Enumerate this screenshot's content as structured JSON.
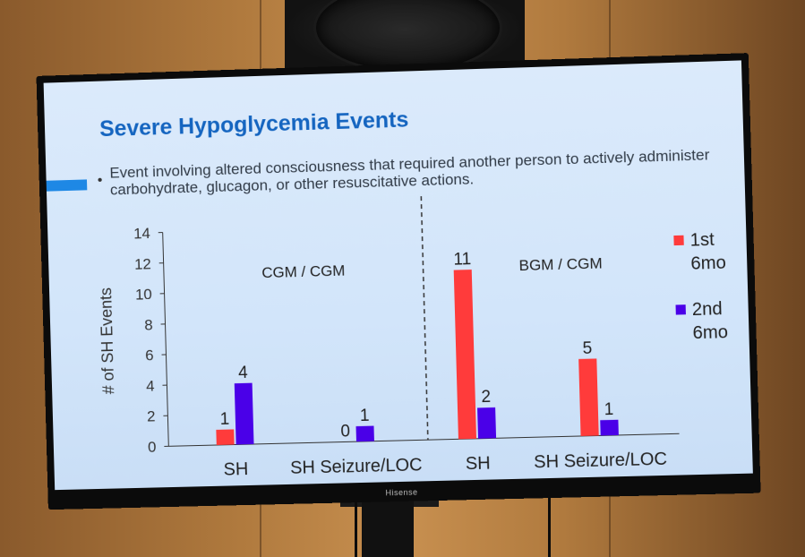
{
  "tv": {
    "brand": "Hisense"
  },
  "slide": {
    "title": "Severe Hypoglycemia Events",
    "bullet": "Event involving altered consciousness that required another person to actively administer carbohydrate, glucagon, or other resuscitative actions."
  },
  "chart_data": {
    "type": "bar",
    "title": "",
    "ylabel": "# of SH Events",
    "xlabel": "",
    "ylim": [
      0,
      14
    ],
    "yticks": [
      0,
      2,
      4,
      6,
      8,
      10,
      12,
      14
    ],
    "groups": [
      "CGM / CGM",
      "BGM / CGM"
    ],
    "categories": [
      "SH",
      "SH Seizure/LOC",
      "SH",
      "SH Seizure/LOC"
    ],
    "series": [
      {
        "name": "1st 6mo",
        "color": "#ff3b3b",
        "values": [
          1,
          0,
          11,
          5
        ]
      },
      {
        "name": "2nd 6mo",
        "color": "#4a00e8",
        "values": [
          4,
          1,
          2,
          1
        ]
      }
    ],
    "legend": [
      "1st",
      "6mo",
      "2nd",
      "6mo"
    ],
    "legend_position": "right",
    "grid": false
  },
  "colors": {
    "title": "#1565c0",
    "accent": "#1e88e5",
    "series1": "#ff3b3b",
    "series2": "#4a00e8"
  }
}
